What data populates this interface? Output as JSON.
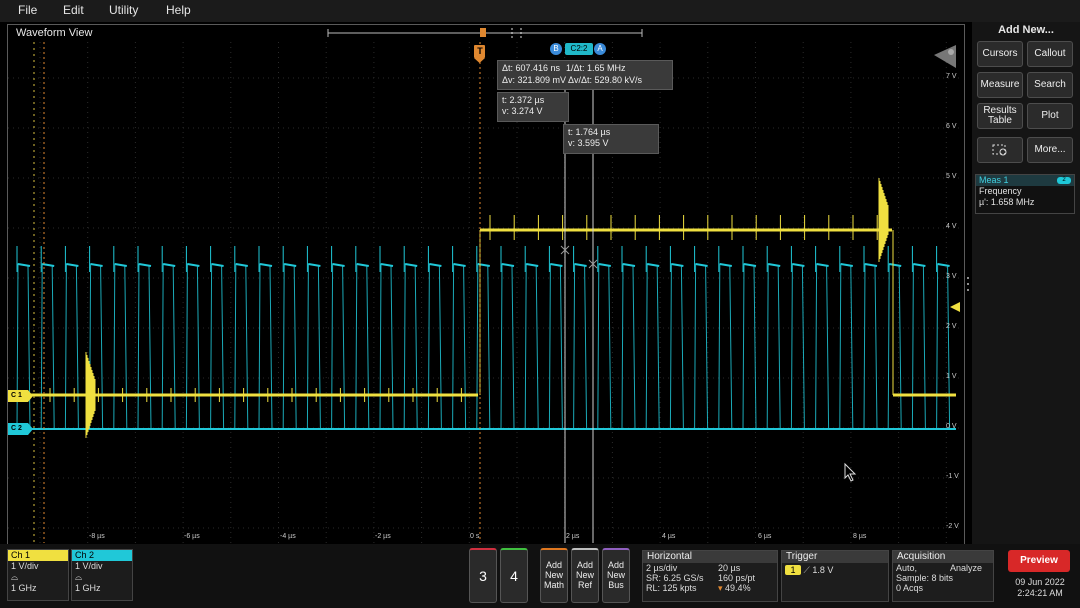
{
  "menu": [
    "File",
    "Edit",
    "Utility",
    "Help"
  ],
  "waveform_view": {
    "title": "Waveform View"
  },
  "y_labels": [
    "7 V",
    "6 V",
    "5 V",
    "4 V",
    "3 V",
    "2 V",
    "1 V",
    "0 V",
    "-1 V",
    "-2 V"
  ],
  "x_labels": [
    "-8 µs",
    "-6 µs",
    "-4 µs",
    "-2 µs",
    "0 s",
    "2 µs",
    "4 µs",
    "6 µs",
    "8 µs"
  ],
  "cursor_readout": {
    "dt": "Δt: 607.416 ns",
    "inv_dt": "1/Δt: 1.65 MHz",
    "dv": "Δv: 321.809 mV",
    "dvdt": "Δv/Δt: 529.80 kV/s",
    "a_t": "t: 2.372 µs",
    "a_v": "v: 3.274 V",
    "b_t": "t: 1.764 µs",
    "b_v": "v: 3.595 V",
    "cursor_b": "B",
    "cursor_src": "C2:2",
    "cursor_a": "A"
  },
  "markers": {
    "trigger": "T",
    "c1": "C 1",
    "c2": "C 2"
  },
  "sidebar": {
    "title": "Add New...",
    "buttons": [
      "Cursors",
      "Callout",
      "Measure",
      "Search",
      "Results Table",
      "Plot",
      "",
      "More..."
    ]
  },
  "meas1": {
    "title": "Meas 1",
    "badge": "2",
    "name": "Frequency",
    "value": "µ': 1.658 MHz"
  },
  "ch1": {
    "label": "Ch 1",
    "scale": "1 V/div",
    "bw": "1 GHz",
    "color": "#f0e040"
  },
  "ch2": {
    "label": "Ch 2",
    "scale": "1 V/div",
    "bw": "1 GHz",
    "color": "#20c8d8"
  },
  "num_buttons": [
    "3",
    "4"
  ],
  "add_buttons": [
    {
      "label": "Add New Math",
      "color": "#e07820"
    },
    {
      "label": "Add New Ref",
      "color": "#c0c0c0"
    },
    {
      "label": "Add New Bus",
      "color": "#9060c0"
    }
  ],
  "horizontal": {
    "title": "Horizontal",
    "l1a": "2 µs/div",
    "l1b": "20 µs",
    "l2a": "SR: 6.25 GS/s",
    "l2b": "160 ps/pt",
    "l3a": "RL: 125 kpts",
    "l3b": "49.4%"
  },
  "trigger": {
    "title": "Trigger",
    "src": "1",
    "level": "1.8 V"
  },
  "acquisition": {
    "title": "Acquisition",
    "l1a": "Auto,",
    "l1b": "Analyze",
    "l2": "Sample: 8 bits",
    "l3": "0 Acqs"
  },
  "preview": {
    "label": "Preview",
    "date": "09 Jun 2022",
    "time": "2:24:21 AM"
  }
}
